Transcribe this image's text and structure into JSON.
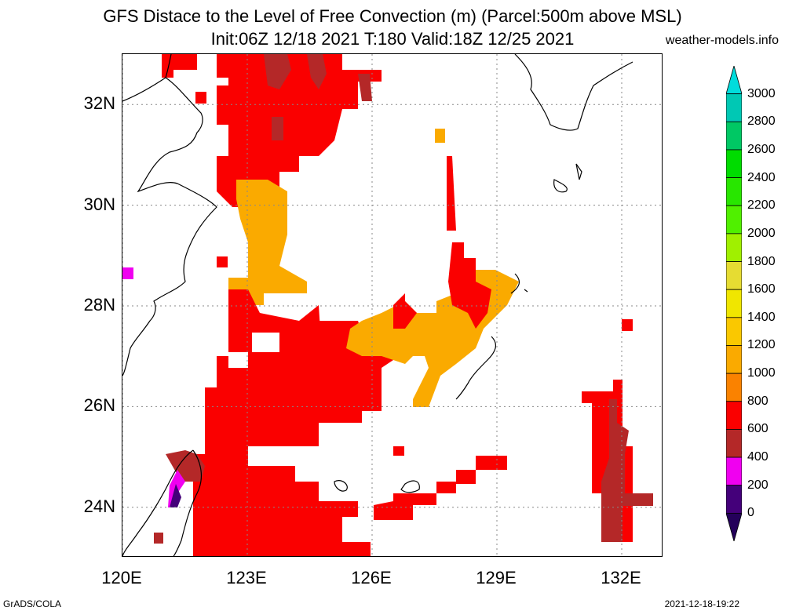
{
  "header": {
    "title_line1": "GFS Distace to the Level of Free Convection (m) (Parcel:500m above MSL)",
    "title_line2": "Init:06Z 12/18 2021 T:180 Valid:18Z 12/25 2021",
    "site": "weather-models.info"
  },
  "map": {
    "lat_labels": [
      "32N",
      "30N",
      "28N",
      "26N",
      "24N"
    ],
    "lon_labels": [
      "120E",
      "123E",
      "126E",
      "129E",
      "132E"
    ],
    "lat_values": [
      32,
      30,
      28,
      26,
      24
    ],
    "lon_values": [
      120,
      123,
      126,
      129,
      132
    ],
    "extent": {
      "lon_min": 120,
      "lon_max": 133,
      "lat_min": 23,
      "lat_max": 33
    }
  },
  "colorbar": {
    "labels": [
      "3000",
      "2800",
      "2600",
      "2400",
      "2200",
      "2000",
      "1800",
      "1600",
      "1400",
      "1200",
      "1000",
      "800",
      "600",
      "400",
      "200",
      "0"
    ],
    "colors": [
      "#00dcdc",
      "#00c8b4",
      "#00c864",
      "#00dc00",
      "#28e600",
      "#50f000",
      "#a0f000",
      "#e6dc32",
      "#f0e600",
      "#fac800",
      "#faaa00",
      "#fa8200",
      "#fa0000",
      "#b42828",
      "#f000f0",
      "#44007a",
      "#24005a"
    ]
  },
  "footer": {
    "left": "GrADS/COLA",
    "right": "2021-12-18-19:22"
  }
}
